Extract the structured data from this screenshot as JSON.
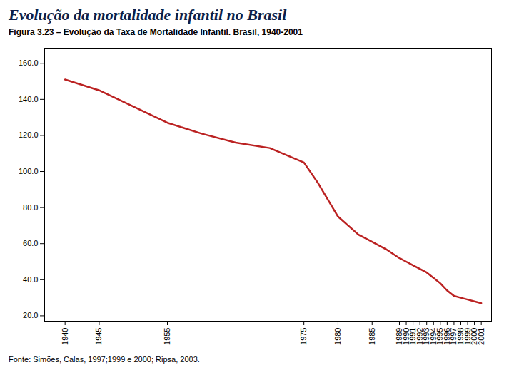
{
  "chart_data": {
    "type": "line",
    "title": "Evolução da mortalidade infantil no Brasil",
    "subtitle": "Figura 3.23 – Evolução da Taxa de Mortalidade Infantil. Brasil, 1940-2001",
    "source": "Fonte: Simões, Calas, 1997;1999 e 2000;  Ripsa, 2003.",
    "x": [
      1940,
      1945,
      1955,
      1960,
      1965,
      1970,
      1975,
      1977,
      1980,
      1983,
      1985,
      1987,
      1989,
      1990,
      1991,
      1992,
      1993,
      1994,
      1995,
      1996,
      1997,
      1998,
      1999,
      2000,
      2001
    ],
    "values": [
      151,
      145,
      127,
      121,
      116,
      113,
      105,
      94,
      75,
      65,
      61,
      57,
      52,
      50,
      48,
      46,
      44,
      41,
      38,
      34,
      31,
      30,
      29,
      28,
      27
    ],
    "color": "#bb2222",
    "xlim": [
      1937,
      2002.5
    ],
    "xticks": [
      1940,
      1945,
      1955,
      1975,
      1980,
      1985,
      1989,
      1990,
      1991,
      1992,
      1993,
      1994,
      1995,
      1996,
      1997,
      1998,
      1999,
      2000,
      2001
    ],
    "ylim": [
      17,
      168
    ],
    "yticks": [
      {
        "value": 20,
        "label": "20.0"
      },
      {
        "value": 40,
        "label": "40.0"
      },
      {
        "value": 60,
        "label": "60.0"
      },
      {
        "value": 80,
        "label": "80.0"
      },
      {
        "value": 100,
        "label": "100.0"
      },
      {
        "value": 120,
        "label": "120.0"
      },
      {
        "value": 140,
        "label": "140.0"
      },
      {
        "value": 160,
        "label": "160.0"
      }
    ],
    "grid": false
  }
}
